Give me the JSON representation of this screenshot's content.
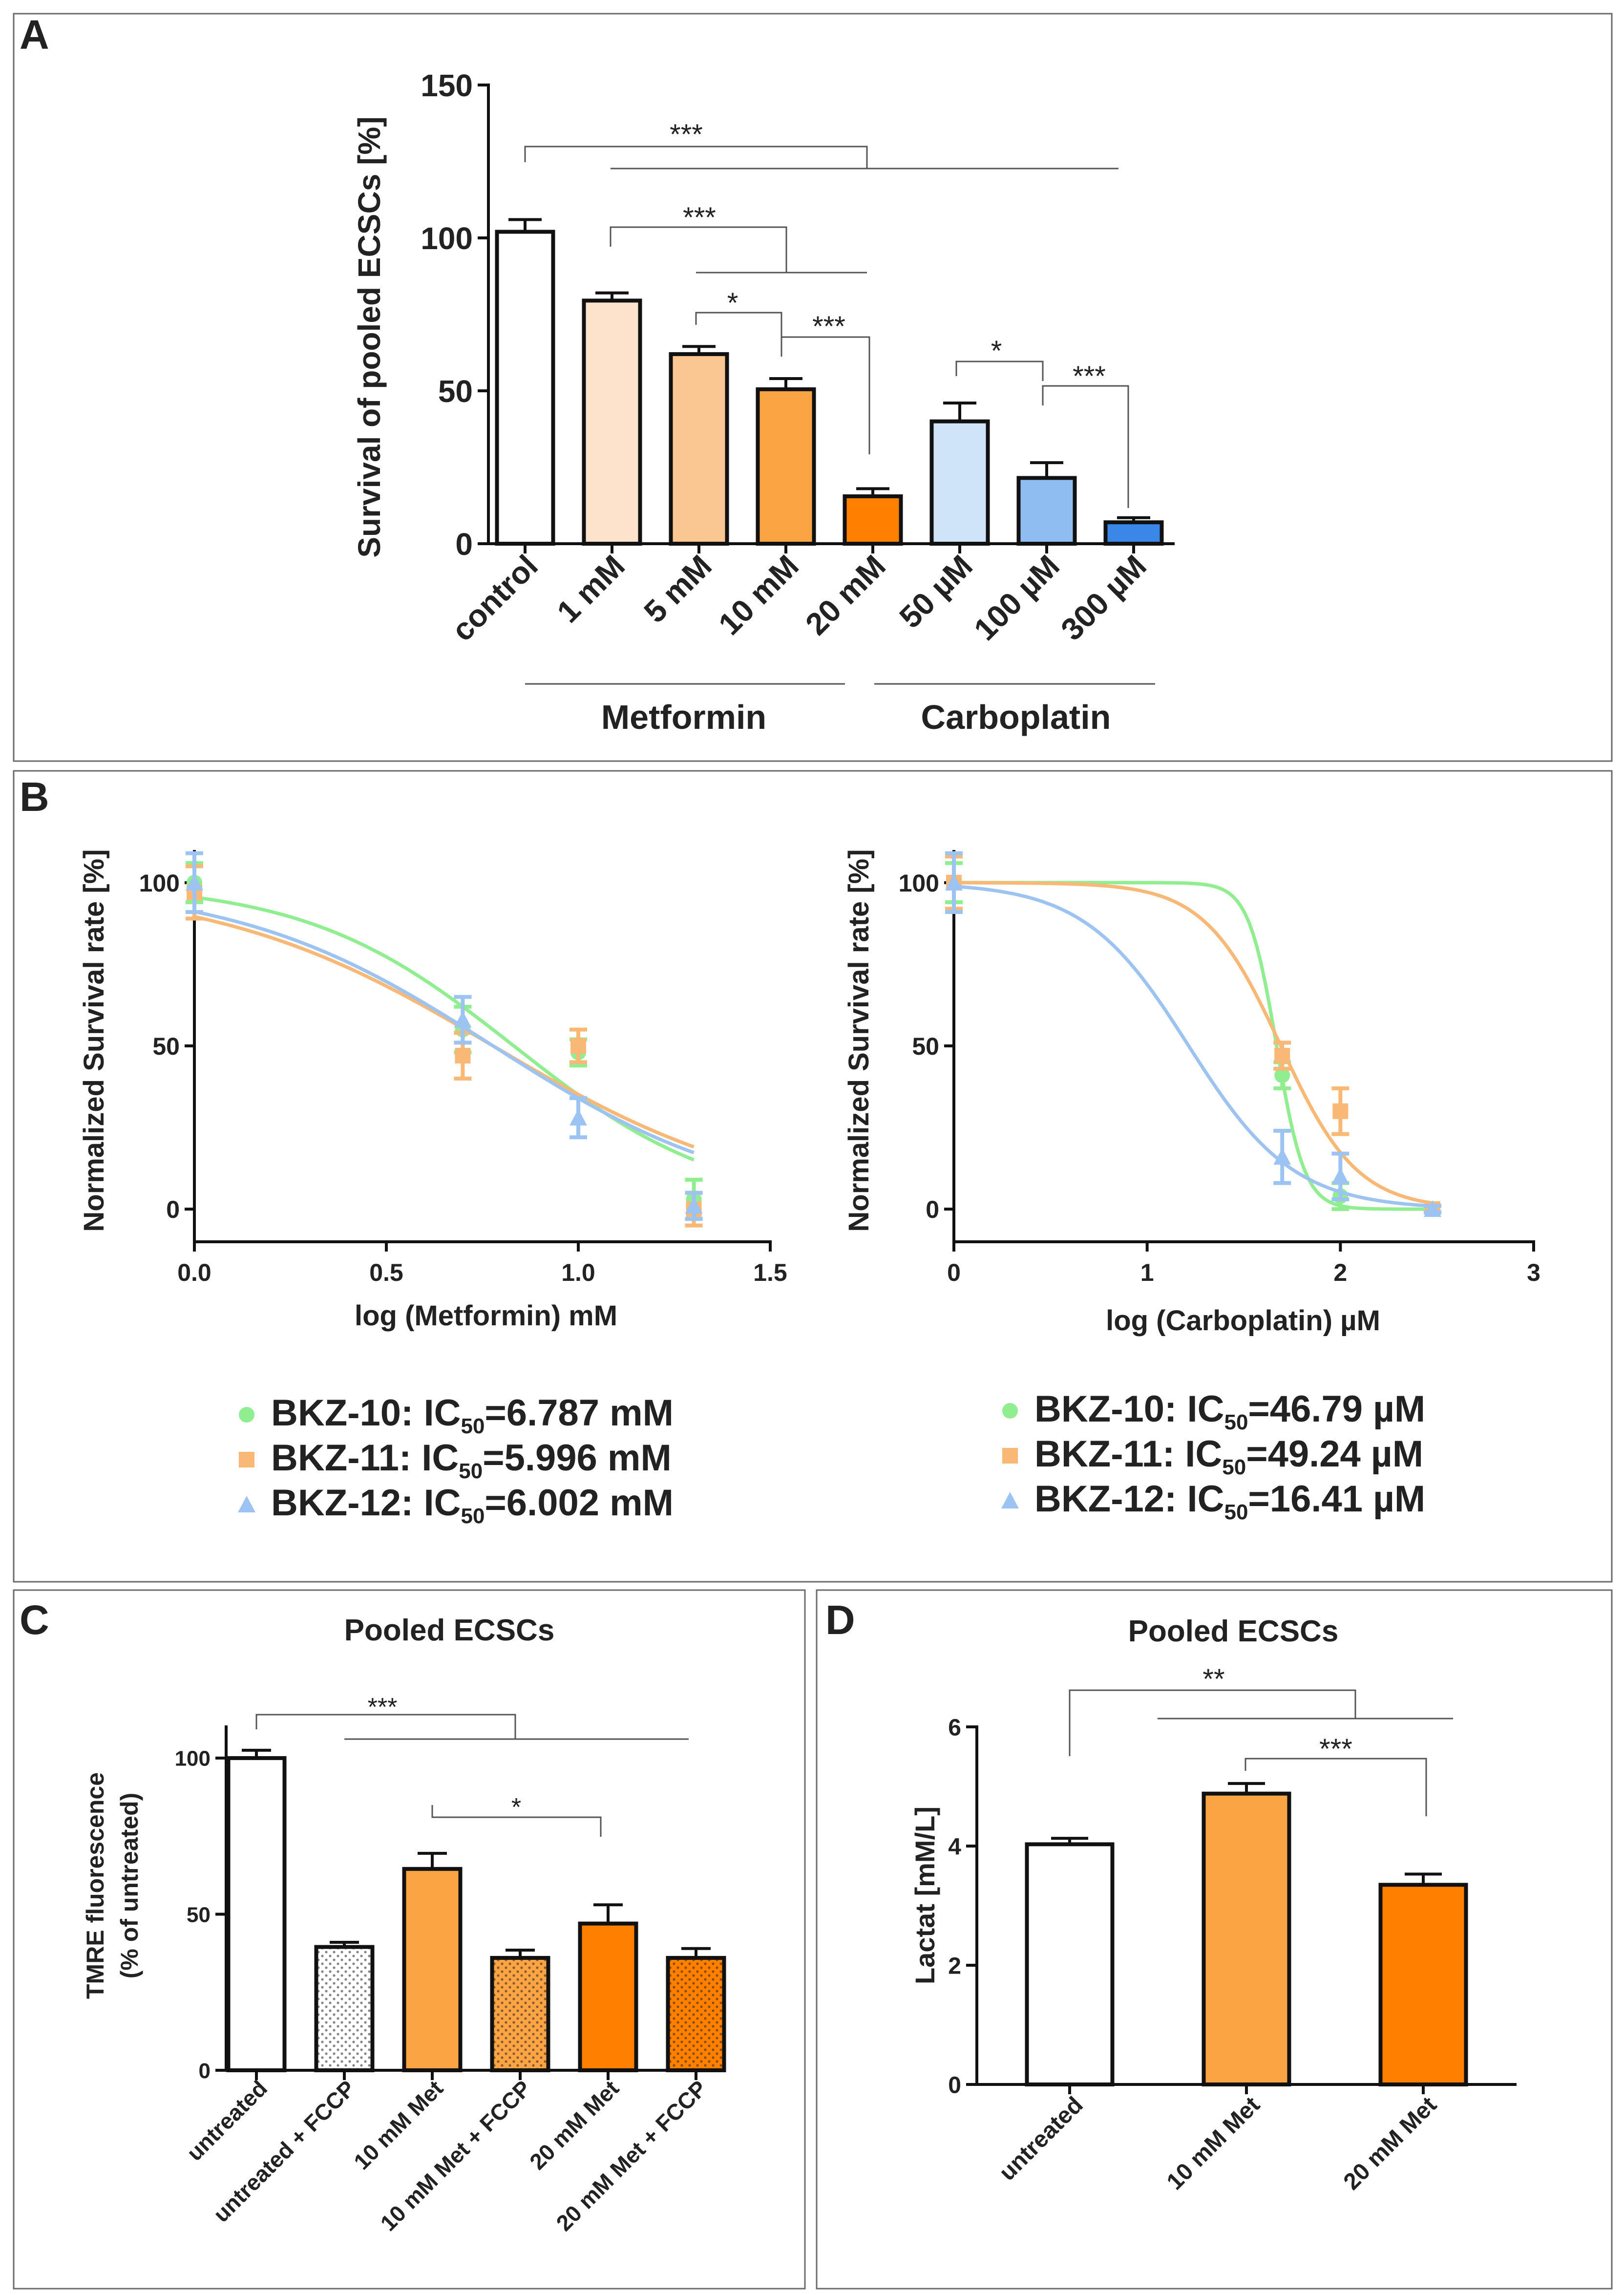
{
  "panels": {
    "A": {
      "letter": "A"
    },
    "B": {
      "letter": "B"
    },
    "C": {
      "letter": "C"
    },
    "D": {
      "letter": "D"
    }
  },
  "colors": {
    "white": "#ffffff",
    "met1": "#fde3cb",
    "met5": "#fac792",
    "met10": "#fba443",
    "met20": "#ff7f00",
    "carb50": "#cfe3f9",
    "carb100": "#8fbdf1",
    "carb300": "#3b87e8",
    "green": "#90ee90",
    "orange": "#f9b875",
    "blue": "#9cc3f2"
  },
  "chart_data": [
    {
      "id": "A",
      "type": "bar",
      "title": "",
      "ylabel": "Survival of pooled ECSCs [%]",
      "ylim": [
        0,
        150
      ],
      "yticks": [
        0,
        50,
        100,
        150
      ],
      "categories": [
        "control",
        "1 mM",
        "5 mM",
        "10 mM",
        "20 mM",
        "50 µM",
        "100 µM",
        "300 µM"
      ],
      "values": [
        102,
        79.5,
        62,
        50.5,
        15.5,
        40,
        21.5,
        7
      ],
      "errors": [
        4,
        2.5,
        2.5,
        3.5,
        2.5,
        6,
        5,
        1.5
      ],
      "fills": [
        "white",
        "met1",
        "met5",
        "met10",
        "met20",
        "carb50",
        "carb100",
        "carb300"
      ],
      "groups": [
        {
          "label": "Metformin",
          "from": 0,
          "to": 4
        },
        {
          "label": "Carboplatin",
          "from": 4,
          "to": 7
        }
      ],
      "significance": [
        "***",
        "***",
        "*",
        "***",
        "*",
        "***"
      ]
    },
    {
      "id": "B-left",
      "type": "line",
      "xlabel": "log (Metformin) mM",
      "ylabel": "Normalized Survival rate [%]",
      "xlim": [
        0,
        1.5
      ],
      "ylim": [
        -10,
        110
      ],
      "xticks": [
        "0.0",
        "0.5",
        "1.0",
        "1.5"
      ],
      "yticks": [
        0,
        50,
        100
      ],
      "series": [
        {
          "name": "BKZ-10",
          "ic50_label": "IC",
          "ic50_sub": "50",
          "ic50_value": "=6.787 mM",
          "color": "green",
          "marker": "circle",
          "log_ic50": 0.832,
          "hill": 1.6,
          "points": [
            {
              "x": 0.0,
              "y": 100,
              "err": 6
            },
            {
              "x": 0.699,
              "y": 55,
              "err": 7
            },
            {
              "x": 1.0,
              "y": 48,
              "err": 4
            },
            {
              "x": 1.301,
              "y": 3,
              "err": 6
            }
          ]
        },
        {
          "name": "BKZ-11",
          "ic50_label": "IC",
          "ic50_sub": "50",
          "ic50_value": "=5.996 mM",
          "color": "orange",
          "marker": "square",
          "log_ic50": 0.778,
          "hill": 1.2,
          "points": [
            {
              "x": 0.0,
              "y": 97,
              "err": 8
            },
            {
              "x": 0.699,
              "y": 47,
              "err": 7
            },
            {
              "x": 1.0,
              "y": 50,
              "err": 5
            },
            {
              "x": 1.301,
              "y": 0,
              "err": 5
            }
          ]
        },
        {
          "name": "BKZ-12",
          "ic50_label": "IC",
          "ic50_sub": "50",
          "ic50_value": "=6.002 mM",
          "color": "blue",
          "marker": "triangle",
          "log_ic50": 0.778,
          "hill": 1.3,
          "points": [
            {
              "x": 0.0,
              "y": 100,
              "err": 9
            },
            {
              "x": 0.699,
              "y": 58,
              "err": 7
            },
            {
              "x": 1.0,
              "y": 28,
              "err": 6
            },
            {
              "x": 1.301,
              "y": 1,
              "err": 4
            }
          ]
        }
      ]
    },
    {
      "id": "B-right",
      "type": "line",
      "xlabel": "log (Carboplatin) µM",
      "ylabel": "Normalized Survival rate [%]",
      "xlim": [
        0,
        3
      ],
      "ylim": [
        -10,
        110
      ],
      "xticks": [
        "0",
        "1",
        "2",
        "3"
      ],
      "yticks": [
        0,
        50,
        100
      ],
      "series": [
        {
          "name": "BKZ-10",
          "ic50_label": "IC",
          "ic50_sub": "50",
          "ic50_value": "=46.79 µM",
          "color": "green",
          "marker": "circle",
          "log_ic50": 1.67,
          "hill": 6,
          "points": [
            {
              "x": 0.0,
              "y": 100,
              "err": 6
            },
            {
              "x": 1.699,
              "y": 41,
              "err": 4
            },
            {
              "x": 2.0,
              "y": 4,
              "err": 4
            },
            {
              "x": 2.477,
              "y": 0,
              "err": 1
            }
          ]
        },
        {
          "name": "BKZ-11",
          "ic50_label": "IC",
          "ic50_sub": "50",
          "ic50_value": "=49.24 µM",
          "color": "orange",
          "marker": "square",
          "log_ic50": 1.692,
          "hill": 2.2,
          "points": [
            {
              "x": 0.0,
              "y": 100,
              "err": 8
            },
            {
              "x": 1.699,
              "y": 47,
              "err": 4
            },
            {
              "x": 2.0,
              "y": 30,
              "err": 7
            },
            {
              "x": 2.477,
              "y": 0,
              "err": 1
            }
          ]
        },
        {
          "name": "BKZ-12",
          "ic50_label": "IC",
          "ic50_sub": "50",
          "ic50_value": "=16.41 µM",
          "color": "blue",
          "marker": "triangle",
          "log_ic50": 1.215,
          "hill": 1.6,
          "points": [
            {
              "x": 0.0,
              "y": 100,
              "err": 9
            },
            {
              "x": 1.699,
              "y": 16,
              "err": 8
            },
            {
              "x": 2.0,
              "y": 10,
              "err": 7
            },
            {
              "x": 2.477,
              "y": 0,
              "err": 1
            }
          ]
        }
      ]
    },
    {
      "id": "C",
      "type": "bar",
      "title": "Pooled ECSCs",
      "ylabel_line1": "TMRE fluorescence",
      "ylabel_line2": "(% of untreated)",
      "ylim": [
        0,
        110
      ],
      "yticks": [
        0,
        50,
        100
      ],
      "categories": [
        "untreated",
        "untreated + FCCP",
        "10 mM Met",
        "10 mM Met + FCCP",
        "20 mM Met",
        "20 mM Met + FCCP"
      ],
      "values": [
        100,
        39.5,
        64.5,
        36,
        47,
        36
      ],
      "errors": [
        2.5,
        1.5,
        5,
        2.5,
        6,
        3
      ],
      "fills": [
        "white",
        "white",
        "met10",
        "met10",
        "met20",
        "met20"
      ],
      "dotted": [
        false,
        true,
        false,
        true,
        false,
        true
      ],
      "significance": [
        "***",
        "*"
      ]
    },
    {
      "id": "D",
      "type": "bar",
      "title": "Pooled ECSCs",
      "ylabel": "Lactat [mM/L]",
      "ylim": [
        0,
        6
      ],
      "yticks": [
        0,
        2,
        4,
        6
      ],
      "categories": [
        "untreated",
        "10 mM Met",
        "20 mM Met"
      ],
      "values": [
        4.03,
        4.88,
        3.35
      ],
      "errors": [
        0.1,
        0.17,
        0.18
      ],
      "fills": [
        "white",
        "met10",
        "met20"
      ],
      "significance": [
        "**",
        "***"
      ]
    }
  ]
}
